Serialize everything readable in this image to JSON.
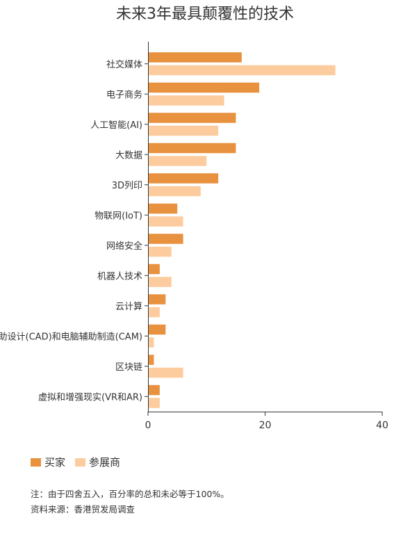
{
  "title": "未来3年最具颠覆性的技术",
  "legend": [
    {
      "label": "买家",
      "color": "#e8913f"
    },
    {
      "label": "参展商",
      "color": "#fdcc9e"
    }
  ],
  "notes": [
    "注：由于四舍五入，百分率的总和未必等于100%。",
    "资料来源：香港贸发局调查"
  ],
  "chart_data": {
    "type": "bar",
    "orientation": "horizontal",
    "title": "未来3年最具颠覆性的技术",
    "categories": [
      "社交媒体",
      "电子商务",
      "人工智能(AI)",
      "大数据",
      "3D列印",
      "物联网(IoT)",
      "网络安全",
      "机器人技术",
      "云计算",
      "计算机辅助设计(CAD)和电脑辅助制造(CAM)",
      "区块链",
      "虚拟和增强现实(VR和AR)"
    ],
    "series": [
      {
        "name": "买家",
        "color": "#e8913f",
        "values": [
          16,
          19,
          15,
          15,
          12,
          5,
          6,
          2,
          3,
          3,
          1,
          2
        ]
      },
      {
        "name": "参展商",
        "color": "#fdcc9e",
        "values": [
          32,
          13,
          12,
          10,
          9,
          6,
          4,
          4,
          2,
          1,
          6,
          2
        ]
      }
    ],
    "xlim": [
      0,
      40
    ],
    "xticks": [
      0,
      20,
      40
    ],
    "grid": false,
    "legend_position": "bottom-left"
  }
}
